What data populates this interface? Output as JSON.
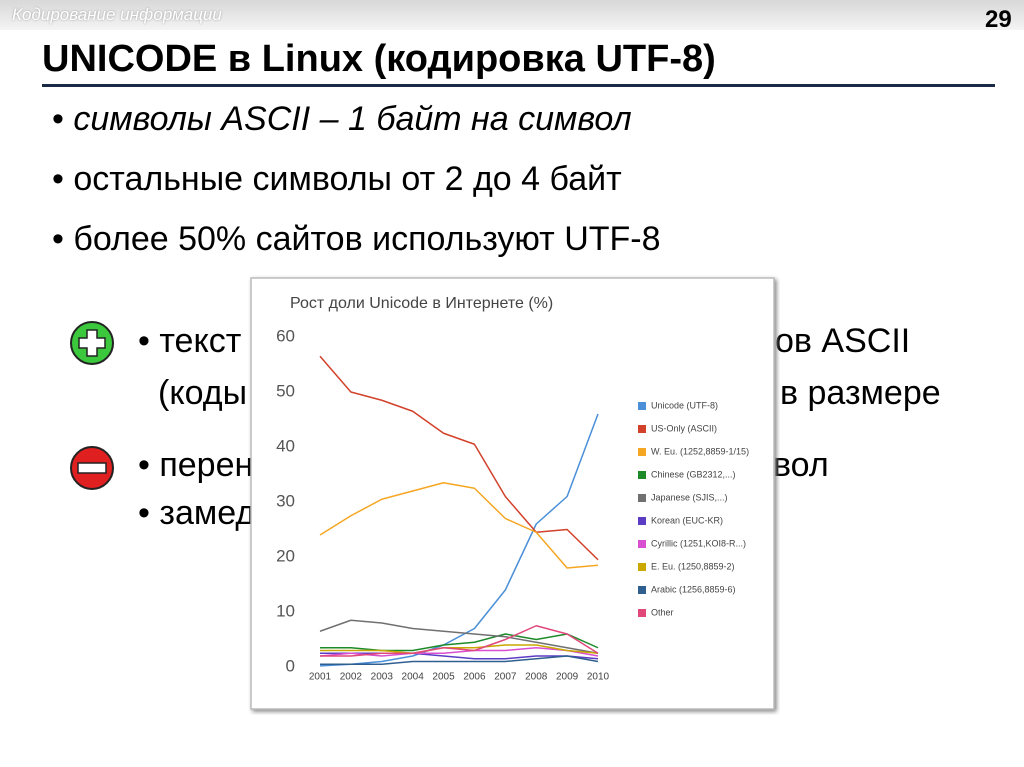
{
  "header": {
    "section": "Кодирование информации",
    "page": "29",
    "title": "UNICODE в Linux (кодировка UTF-8)"
  },
  "bullets": [
    "символы ASCII – 1 байт на символ",
    "остальные символы от 2 до 4 байт",
    "более 50% сайтов используют UTF-8"
  ],
  "pros": [
    [
      "текст",
      "ов ASCII"
    ],
    [
      "(коды",
      "в размере"
    ]
  ],
  "cons": [
    [
      "перен",
      "вол"
    ],
    [
      "замед"
    ]
  ],
  "chart_data": {
    "type": "line",
    "title": "Рост доли Unicode в Интернете (%)",
    "categories": [
      "2001",
      "2002",
      "2003",
      "2004",
      "2005",
      "2006",
      "2007",
      "2008",
      "2009",
      "2010"
    ],
    "ylim": [
      0,
      60
    ],
    "yticks": [
      0,
      10,
      20,
      30,
      40,
      50,
      60
    ],
    "series": [
      {
        "name": "Unicode (UTF-8)",
        "color": "#4a8fd8",
        "values": [
          0.2,
          0.5,
          1,
          2,
          4,
          7,
          14,
          26,
          31,
          46
        ]
      },
      {
        "name": "US-Only (ASCII)",
        "color": "#d2412a",
        "values": [
          56.5,
          50,
          48.5,
          46.5,
          42.5,
          40.5,
          31,
          24.5,
          25,
          19.5
        ]
      },
      {
        "name": "W. Eu. (1252,8859-1/15)",
        "color": "#f5a623",
        "values": [
          24,
          27.5,
          30.5,
          32,
          33.5,
          32.5,
          27,
          24.5,
          18,
          18.5
        ]
      },
      {
        "name": "Chinese (GB2312,...)",
        "color": "#1d8a2a",
        "values": [
          3.5,
          3.5,
          3,
          3,
          4,
          4.5,
          6,
          5,
          6,
          3.5
        ]
      },
      {
        "name": "Japanese (SJIS,...)",
        "color": "#707070",
        "values": [
          6.5,
          8.5,
          8,
          7,
          6.5,
          6,
          5.5,
          4.5,
          3.5,
          2.5
        ]
      },
      {
        "name": "Korean (EUC-KR)",
        "color": "#5b3cc4",
        "values": [
          2.5,
          2.5,
          2.5,
          2.5,
          2,
          1.5,
          1.5,
          2,
          2,
          1.5
        ]
      },
      {
        "name": "Cyrillic (1251,KOI8-R...)",
        "color": "#d94fd1",
        "values": [
          2,
          2.5,
          2,
          2.5,
          2.5,
          3,
          3,
          3.5,
          3,
          2
        ]
      },
      {
        "name": "E. Eu. (1250,8859-2)",
        "color": "#c9a800",
        "values": [
          3,
          3,
          3,
          2.5,
          3.5,
          3.5,
          4,
          4,
          3,
          2.5
        ]
      },
      {
        "name": "Arabic (1256,8859-6)",
        "color": "#2f5f8f",
        "values": [
          0.5,
          0.5,
          0.5,
          1,
          1,
          1,
          1,
          1.5,
          2,
          1
        ]
      },
      {
        "name": "Other",
        "color": "#e0487a",
        "values": [
          2,
          2,
          2.5,
          2.5,
          3.5,
          3,
          5,
          7.5,
          6,
          2.5
        ]
      }
    ]
  }
}
